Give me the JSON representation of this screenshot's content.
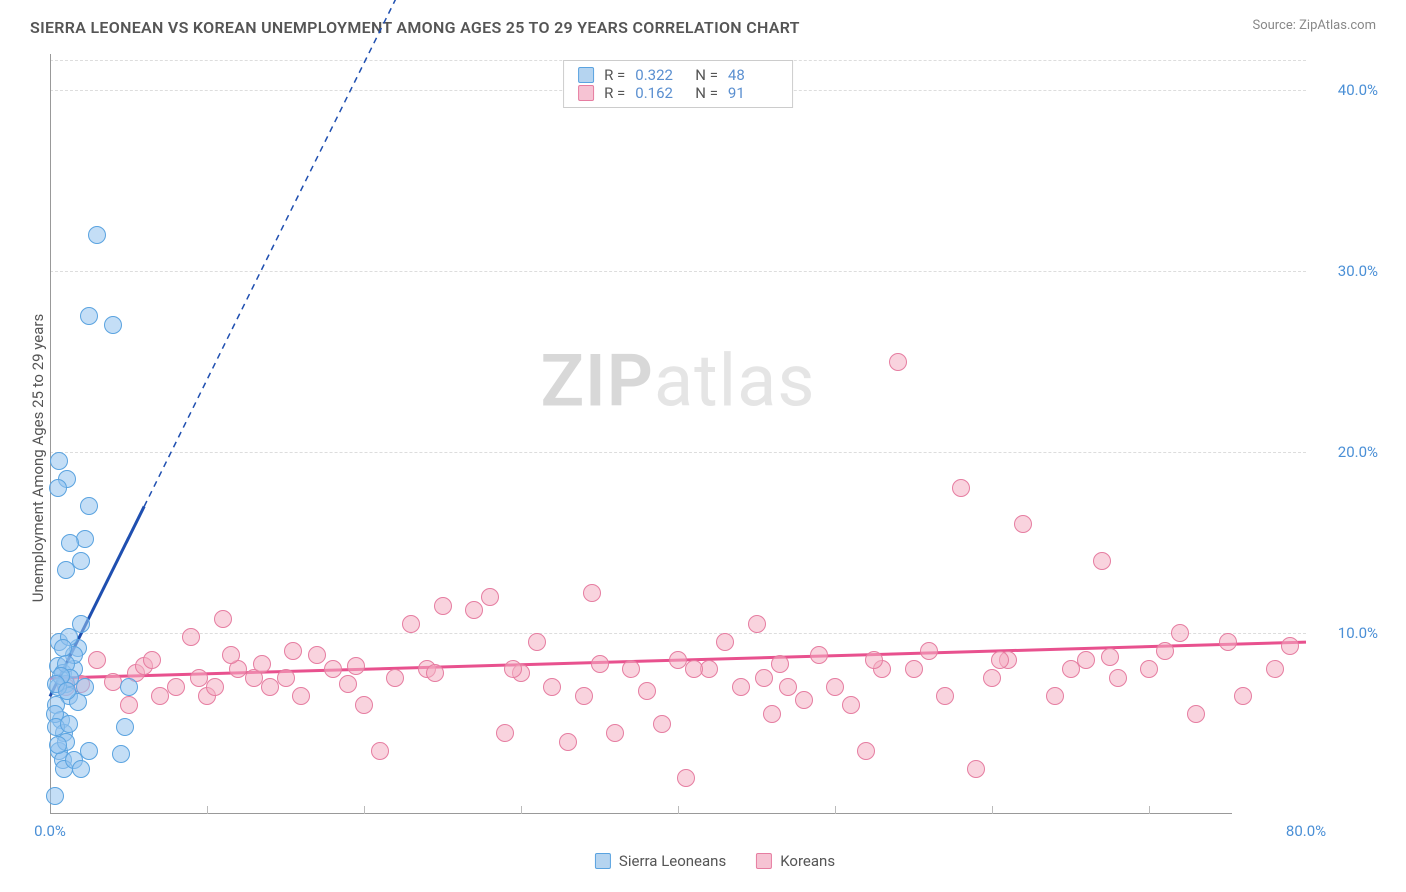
{
  "header": {
    "title": "SIERRA LEONEAN VS KOREAN UNEMPLOYMENT AMONG AGES 25 TO 29 YEARS CORRELATION CHART",
    "source": "Source: ZipAtlas.com"
  },
  "watermark": {
    "zip": "ZIP",
    "atlas": "atlas"
  },
  "chart": {
    "type": "scatter",
    "ylabel": "Unemployment Among Ages 25 to 29 years",
    "xlim": [
      0,
      80
    ],
    "ylim": [
      0,
      42
    ],
    "xtick_labels": [
      {
        "x": 0,
        "label": "0.0%"
      },
      {
        "x": 80,
        "label": "80.0%"
      }
    ],
    "xtick_minor": [
      10,
      20,
      30,
      40,
      50,
      60,
      70
    ],
    "ytick_labels": [
      {
        "y": 10,
        "label": "10.0%"
      },
      {
        "y": 20,
        "label": "20.0%"
      },
      {
        "y": 30,
        "label": "30.0%"
      },
      {
        "y": 40,
        "label": "40.0%"
      }
    ],
    "grid_color": "#dddddd",
    "background_color": "#ffffff",
    "marker_radius": 9,
    "colors": {
      "blue_fill": "#94c3ef",
      "blue_stroke": "#5aa3e0",
      "pink_fill": "#f4aec3",
      "pink_stroke": "#e67da1",
      "trend_blue": "#1f4fb0",
      "trend_pink": "#e8518e",
      "axis_text": "#4a8fd6"
    },
    "legend_stats": [
      {
        "swatch": "blue",
        "r_label": "R =",
        "r": "0.322",
        "n_label": "N =",
        "n": "48"
      },
      {
        "swatch": "pink",
        "r_label": "R =",
        "r": "0.162",
        "n_label": "N =",
        "n": "91"
      }
    ],
    "bottom_legend": [
      {
        "swatch": "blue",
        "label": "Sierra Leoneans"
      },
      {
        "swatch": "pink",
        "label": "Koreans"
      }
    ],
    "series": {
      "blue": {
        "points": [
          [
            0.5,
            8.2
          ],
          [
            0.6,
            9.5
          ],
          [
            0.8,
            7.8
          ],
          [
            1.0,
            7.2
          ],
          [
            1.2,
            6.5
          ],
          [
            0.4,
            6.0
          ],
          [
            0.7,
            5.2
          ],
          [
            0.9,
            4.5
          ],
          [
            1.5,
            8.0
          ],
          [
            1.8,
            9.2
          ],
          [
            2.0,
            14.0
          ],
          [
            2.2,
            15.2
          ],
          [
            1.0,
            13.5
          ],
          [
            1.3,
            15.0
          ],
          [
            1.1,
            18.5
          ],
          [
            0.5,
            18.0
          ],
          [
            0.6,
            19.5
          ],
          [
            2.5,
            17.0
          ],
          [
            3.0,
            32.0
          ],
          [
            2.5,
            27.5
          ],
          [
            4.0,
            27.0
          ],
          [
            1.2,
            9.8
          ],
          [
            1.5,
            8.8
          ],
          [
            0.8,
            9.2
          ],
          [
            1.0,
            8.3
          ],
          [
            1.3,
            7.5
          ],
          [
            0.5,
            7.0
          ],
          [
            0.7,
            7.6
          ],
          [
            0.3,
            5.5
          ],
          [
            0.4,
            4.8
          ],
          [
            0.6,
            3.5
          ],
          [
            0.8,
            3.0
          ],
          [
            4.5,
            3.3
          ],
          [
            4.8,
            4.8
          ],
          [
            5.0,
            7.0
          ],
          [
            0.9,
            2.5
          ],
          [
            1.5,
            3.0
          ],
          [
            2.0,
            2.5
          ],
          [
            2.5,
            3.5
          ],
          [
            1.0,
            4.0
          ],
          [
            0.5,
            3.8
          ],
          [
            1.2,
            5.0
          ],
          [
            1.8,
            6.2
          ],
          [
            2.2,
            7.0
          ],
          [
            2.0,
            10.5
          ],
          [
            0.4,
            7.2
          ],
          [
            1.1,
            6.8
          ],
          [
            0.3,
            1.0
          ]
        ],
        "trend": {
          "x1": 0,
          "y1": 6.5,
          "x2": 6,
          "y2": 17,
          "dashed_to": [
            22,
            45
          ]
        }
      },
      "pink": {
        "points": [
          [
            1,
            7.0
          ],
          [
            2,
            7.2
          ],
          [
            3,
            8.5
          ],
          [
            4,
            7.3
          ],
          [
            5,
            6.0
          ],
          [
            5.5,
            7.8
          ],
          [
            6,
            8.2
          ],
          [
            7,
            6.5
          ],
          [
            8,
            7.0
          ],
          [
            9,
            9.8
          ],
          [
            9.5,
            7.5
          ],
          [
            10,
            6.5
          ],
          [
            10.5,
            7.0
          ],
          [
            11,
            10.8
          ],
          [
            12,
            8.0
          ],
          [
            13,
            7.5
          ],
          [
            13.5,
            8.3
          ],
          [
            14,
            7.0
          ],
          [
            15,
            7.5
          ],
          [
            16,
            6.5
          ],
          [
            17,
            8.8
          ],
          [
            18,
            8.0
          ],
          [
            19,
            7.2
          ],
          [
            20,
            6.0
          ],
          [
            21,
            3.5
          ],
          [
            22,
            7.5
          ],
          [
            23,
            10.5
          ],
          [
            24,
            8.0
          ],
          [
            25,
            11.5
          ],
          [
            27,
            11.3
          ],
          [
            28,
            12.0
          ],
          [
            29,
            4.5
          ],
          [
            30,
            7.8
          ],
          [
            31,
            9.5
          ],
          [
            32,
            7.0
          ],
          [
            33,
            4.0
          ],
          [
            34,
            6.5
          ],
          [
            34.5,
            12.2
          ],
          [
            36,
            4.5
          ],
          [
            37,
            8.0
          ],
          [
            38,
            6.8
          ],
          [
            39,
            5.0
          ],
          [
            40,
            8.5
          ],
          [
            40.5,
            2.0
          ],
          [
            42,
            8.0
          ],
          [
            43,
            9.5
          ],
          [
            44,
            7.0
          ],
          [
            45,
            10.5
          ],
          [
            45.5,
            7.5
          ],
          [
            46,
            5.5
          ],
          [
            47,
            7.0
          ],
          [
            48,
            6.3
          ],
          [
            49,
            8.8
          ],
          [
            50,
            7.0
          ],
          [
            51,
            6.0
          ],
          [
            52,
            3.5
          ],
          [
            53,
            8.0
          ],
          [
            54,
            25.0
          ],
          [
            55,
            8.0
          ],
          [
            56,
            9.0
          ],
          [
            57,
            6.5
          ],
          [
            58,
            18.0
          ],
          [
            59,
            2.5
          ],
          [
            60,
            7.5
          ],
          [
            61,
            8.5
          ],
          [
            62,
            16.0
          ],
          [
            64,
            6.5
          ],
          [
            65,
            8.0
          ],
          [
            66,
            8.5
          ],
          [
            67,
            14.0
          ],
          [
            68,
            7.5
          ],
          [
            70,
            8.0
          ],
          [
            71,
            9.0
          ],
          [
            72,
            10.0
          ],
          [
            73,
            5.5
          ],
          [
            75,
            9.5
          ],
          [
            76,
            6.5
          ],
          [
            78,
            8.0
          ],
          [
            79,
            9.3
          ],
          [
            6.5,
            8.5
          ],
          [
            11.5,
            8.8
          ],
          [
            15.5,
            9.0
          ],
          [
            19.5,
            8.2
          ],
          [
            24.5,
            7.8
          ],
          [
            29.5,
            8.0
          ],
          [
            35,
            8.3
          ],
          [
            41,
            8.0
          ],
          [
            46.5,
            8.3
          ],
          [
            52.5,
            8.5
          ],
          [
            60.5,
            8.5
          ],
          [
            67.5,
            8.7
          ]
        ],
        "trend": {
          "x1": 0,
          "y1": 7.5,
          "x2": 80,
          "y2": 9.5
        }
      }
    }
  }
}
